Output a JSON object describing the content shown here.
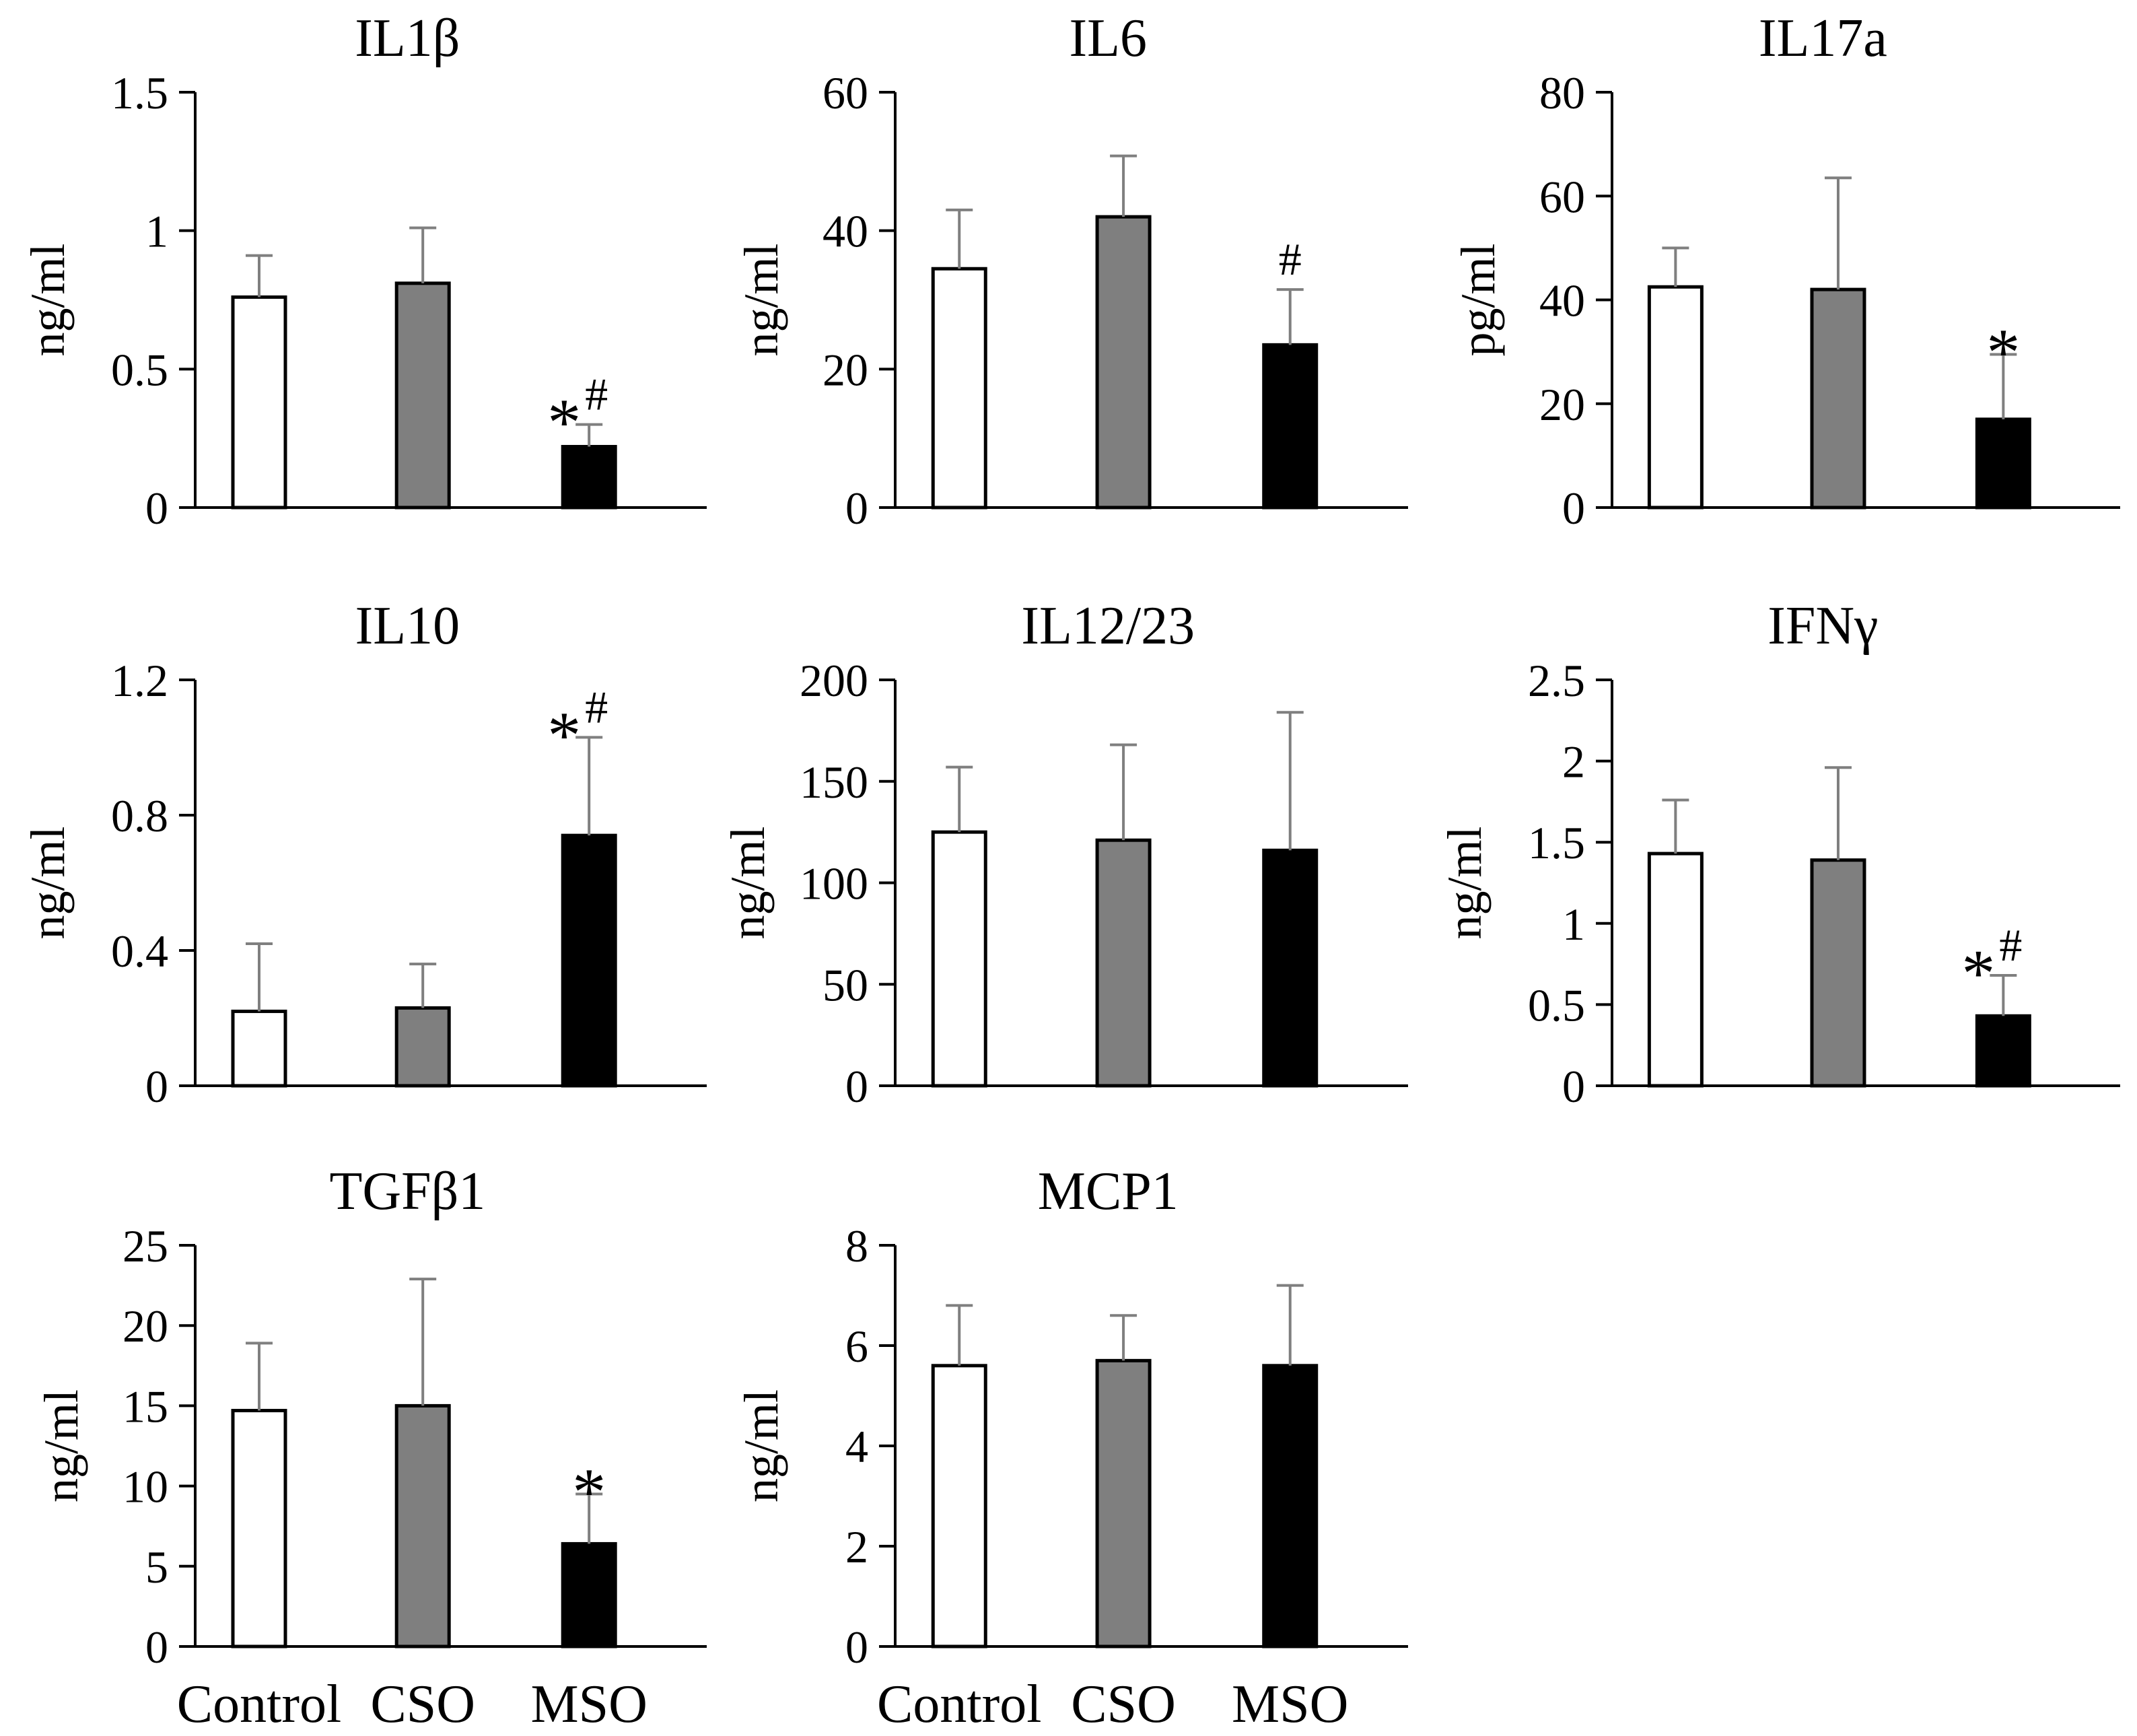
{
  "chart_data": [
    {
      "type": "bar",
      "title": "IL1β",
      "ylabel": "ng/ml",
      "ylim": [
        0,
        1.5
      ],
      "yticks": [
        "0",
        "0.5",
        "1",
        "1.5"
      ],
      "tick_values": [
        0,
        0.5,
        1,
        1.5
      ],
      "categories": [
        "Control",
        "CSO",
        "MSO"
      ],
      "show_categories": false,
      "values": [
        0.76,
        0.81,
        0.22
      ],
      "errors": [
        0.15,
        0.2,
        0.08
      ],
      "fills": [
        "#ffffff",
        "#7f7f7f",
        "#000000"
      ],
      "markers": [
        {
          "index": 2,
          "star": "*",
          "hash": "#"
        }
      ]
    },
    {
      "type": "bar",
      "title": "IL6",
      "ylabel": "ng/ml",
      "ylim": [
        0,
        60
      ],
      "yticks": [
        "0",
        "20",
        "40",
        "60"
      ],
      "tick_values": [
        0,
        20,
        40,
        60
      ],
      "categories": [
        "Control",
        "CSO",
        "MSO"
      ],
      "show_categories": false,
      "values": [
        34.5,
        42.0,
        23.5
      ],
      "errors": [
        8.5,
        8.8,
        8.0
      ],
      "fills": [
        "#ffffff",
        "#7f7f7f",
        "#000000"
      ],
      "markers": [
        {
          "index": 2,
          "star": "",
          "hash": "#"
        }
      ]
    },
    {
      "type": "bar",
      "title": "IL17a",
      "ylabel": "pg/ml",
      "ylim": [
        0,
        80
      ],
      "yticks": [
        "0",
        "20",
        "40",
        "60",
        "80"
      ],
      "tick_values": [
        0,
        20,
        40,
        60,
        80
      ],
      "categories": [
        "Control",
        "CSO",
        "MSO"
      ],
      "show_categories": false,
      "values": [
        42.5,
        42.0,
        17.0
      ],
      "errors": [
        7.5,
        21.5,
        12.5
      ],
      "fills": [
        "#ffffff",
        "#7f7f7f",
        "#000000"
      ],
      "markers": [
        {
          "index": 2,
          "star": "*",
          "hash": ""
        }
      ]
    },
    {
      "type": "bar",
      "title": "IL10",
      "ylabel": "ng/ml",
      "ylim": [
        0,
        1.2
      ],
      "yticks": [
        "0",
        "0.4",
        "0.8",
        "1.2"
      ],
      "tick_values": [
        0,
        0.4,
        0.8,
        1.2
      ],
      "categories": [
        "Control",
        "CSO",
        "MSO"
      ],
      "show_categories": false,
      "values": [
        0.22,
        0.23,
        0.74
      ],
      "errors": [
        0.2,
        0.13,
        0.29
      ],
      "fills": [
        "#ffffff",
        "#7f7f7f",
        "#000000"
      ],
      "markers": [
        {
          "index": 2,
          "star": "*",
          "hash": "#"
        }
      ]
    },
    {
      "type": "bar",
      "title": "IL12/23",
      "ylabel": "ng/ml",
      "ylim": [
        0,
        200
      ],
      "yticks": [
        "0",
        "50",
        "100",
        "150",
        "200"
      ],
      "tick_values": [
        0,
        50,
        100,
        150,
        200
      ],
      "categories": [
        "Control",
        "CSO",
        "MSO"
      ],
      "show_categories": false,
      "values": [
        125,
        121,
        116
      ],
      "errors": [
        32,
        47,
        68
      ],
      "fills": [
        "#ffffff",
        "#7f7f7f",
        "#000000"
      ],
      "markers": []
    },
    {
      "type": "bar",
      "title": "IFNγ",
      "ylabel": "ng/ml",
      "ylim": [
        0,
        2.5
      ],
      "yticks": [
        "0",
        "0.5",
        "1",
        "1.5",
        "2",
        "2.5"
      ],
      "tick_values": [
        0,
        0.5,
        1,
        1.5,
        2,
        2.5
      ],
      "categories": [
        "Control",
        "CSO",
        "MSO"
      ],
      "show_categories": false,
      "values": [
        1.43,
        1.39,
        0.43
      ],
      "errors": [
        0.33,
        0.57,
        0.25
      ],
      "fills": [
        "#ffffff",
        "#7f7f7f",
        "#000000"
      ],
      "markers": [
        {
          "index": 2,
          "star": "*",
          "hash": "#"
        }
      ]
    },
    {
      "type": "bar",
      "title": "TGFβ1",
      "ylabel": "ng/ml",
      "ylim": [
        0,
        25
      ],
      "yticks": [
        "0",
        "5",
        "10",
        "15",
        "20",
        "25"
      ],
      "tick_values": [
        0,
        5,
        10,
        15,
        20,
        25
      ],
      "categories": [
        "Control",
        "CSO",
        "MSO"
      ],
      "show_categories": true,
      "values": [
        14.7,
        15.0,
        6.4
      ],
      "errors": [
        4.2,
        7.9,
        3.1
      ],
      "fills": [
        "#ffffff",
        "#7f7f7f",
        "#000000"
      ],
      "markers": [
        {
          "index": 2,
          "star": "*",
          "hash": ""
        }
      ]
    },
    {
      "type": "bar",
      "title": "MCP1",
      "ylabel": "ng/ml",
      "ylim": [
        0,
        8
      ],
      "yticks": [
        "0",
        "2",
        "4",
        "6",
        "8"
      ],
      "tick_values": [
        0,
        2,
        4,
        6,
        8
      ],
      "categories": [
        "Control",
        "CSO",
        "MSO"
      ],
      "show_categories": true,
      "values": [
        5.6,
        5.7,
        5.6
      ],
      "errors": [
        1.2,
        0.9,
        1.6
      ],
      "fills": [
        "#ffffff",
        "#7f7f7f",
        "#000000"
      ],
      "markers": []
    }
  ]
}
